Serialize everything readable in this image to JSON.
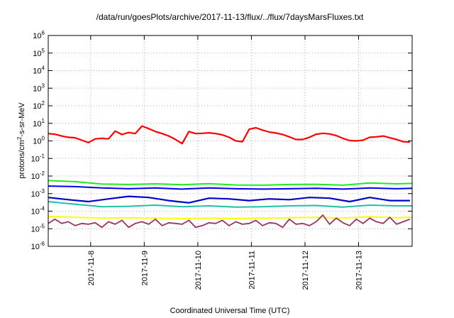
{
  "chart_data": {
    "type": "line",
    "title": "/data/run/goesPlots/archive/2017-11-13/flux/../flux/7daysMarsFluxes.txt",
    "xlabel": "Coordinated Universal Time (UTC)",
    "ylabel_parts": [
      "protons/cm",
      "2",
      "-s-sr-MeV"
    ],
    "y_scale": "log",
    "y_exponent_range": [
      -6,
      6
    ],
    "y_tick_labels": [
      {
        "base": "10",
        "exp": "-6"
      },
      {
        "base": "10",
        "exp": "-5"
      },
      {
        "base": "10",
        "exp": "-4"
      },
      {
        "base": "10",
        "exp": "-3"
      },
      {
        "base": "10",
        "exp": "-2"
      },
      {
        "base": "10",
        "exp": "-1"
      },
      {
        "base": "10",
        "exp": "0"
      },
      {
        "base": "10",
        "exp": "1"
      },
      {
        "base": "10",
        "exp": "2"
      },
      {
        "base": "10",
        "exp": "3"
      },
      {
        "base": "10",
        "exp": "4"
      },
      {
        "base": "10",
        "exp": "5"
      },
      {
        "base": "10",
        "exp": "6"
      }
    ],
    "x_range_days": [
      "2017-11-07T05:00",
      "2017-11-14T00:00"
    ],
    "x_tick_labels": [
      "2017-11-8",
      "2017-11-9",
      "2017-11-10",
      "2017-11-11",
      "2017-11-12",
      "2017-11-13"
    ],
    "grid": true,
    "series": [
      {
        "color": "#ff0000",
        "width": 2.2,
        "x": [
          "2017-11-07T05:00",
          "2017-11-07T08:00",
          "2017-11-07T11:00",
          "2017-11-07T14:00",
          "2017-11-07T17:00",
          "2017-11-07T20:00",
          "2017-11-07T23:00",
          "2017-11-08T02:00",
          "2017-11-08T05:00",
          "2017-11-08T08:00",
          "2017-11-08T11:00",
          "2017-11-08T14:00",
          "2017-11-08T17:00",
          "2017-11-08T20:00",
          "2017-11-08T23:00",
          "2017-11-09T02:00",
          "2017-11-09T05:00",
          "2017-11-09T08:00",
          "2017-11-09T11:00",
          "2017-11-09T14:00",
          "2017-11-09T17:00",
          "2017-11-09T20:00",
          "2017-11-09T23:00",
          "2017-11-10T02:00",
          "2017-11-10T05:00",
          "2017-11-10T08:00",
          "2017-11-10T11:00",
          "2017-11-10T14:00",
          "2017-11-10T17:00",
          "2017-11-10T20:00",
          "2017-11-10T23:00",
          "2017-11-11T02:00",
          "2017-11-11T05:00",
          "2017-11-11T08:00",
          "2017-11-11T11:00",
          "2017-11-11T14:00",
          "2017-11-11T17:00",
          "2017-11-11T20:00",
          "2017-11-11T23:00",
          "2017-11-12T02:00",
          "2017-11-12T05:00",
          "2017-11-12T08:00",
          "2017-11-12T11:00",
          "2017-11-12T14:00",
          "2017-11-12T17:00",
          "2017-11-12T20:00",
          "2017-11-12T23:00",
          "2017-11-13T02:00",
          "2017-11-13T05:00",
          "2017-11-13T08:00",
          "2017-11-13T11:00",
          "2017-11-13T14:00",
          "2017-11-13T17:00",
          "2017-11-13T20:00",
          "2017-11-13T23:00"
        ],
        "y": [
          2.6,
          2.4,
          1.9,
          1.6,
          1.5,
          1.1,
          0.8,
          1.3,
          1.4,
          1.3,
          3.6,
          2.3,
          3.0,
          2.6,
          7.0,
          5.0,
          3.4,
          2.6,
          1.9,
          1.2,
          0.7,
          3.4,
          2.6,
          2.7,
          2.9,
          2.6,
          2.2,
          1.6,
          1.0,
          0.9,
          4.6,
          5.6,
          4.1,
          3.2,
          2.8,
          2.3,
          1.7,
          1.2,
          1.2,
          1.6,
          2.4,
          2.7,
          2.5,
          2.0,
          1.4,
          1.05,
          1.0,
          1.1,
          1.6,
          1.7,
          1.9,
          1.5,
          1.2,
          0.9,
          0.85
        ]
      },
      {
        "color": "#22e822",
        "width": 2,
        "x": [
          "2017-11-07T05:00",
          "2017-11-07T17:00",
          "2017-11-08T05:00",
          "2017-11-08T17:00",
          "2017-11-09T05:00",
          "2017-11-09T17:00",
          "2017-11-10T05:00",
          "2017-11-10T17:00",
          "2017-11-11T05:00",
          "2017-11-11T17:00",
          "2017-11-12T05:00",
          "2017-11-12T17:00",
          "2017-11-13T05:00",
          "2017-11-13T17:00",
          "2017-11-14T00:00"
        ],
        "y": [
          0.0055,
          0.0048,
          0.0035,
          0.0033,
          0.0036,
          0.0032,
          0.0037,
          0.0031,
          0.003,
          0.0033,
          0.0034,
          0.003,
          0.004,
          0.0036,
          0.0038
        ]
      },
      {
        "color": "#0000ee",
        "width": 2,
        "x": [
          "2017-11-07T05:00",
          "2017-11-07T17:00",
          "2017-11-08T05:00",
          "2017-11-08T17:00",
          "2017-11-09T05:00",
          "2017-11-09T17:00",
          "2017-11-10T05:00",
          "2017-11-10T17:00",
          "2017-11-11T05:00",
          "2017-11-11T17:00",
          "2017-11-12T05:00",
          "2017-11-12T17:00",
          "2017-11-13T05:00",
          "2017-11-13T17:00",
          "2017-11-14T00:00"
        ],
        "y": [
          0.0027,
          0.0025,
          0.0021,
          0.0019,
          0.0021,
          0.0018,
          0.0021,
          0.0019,
          0.0018,
          0.0019,
          0.002,
          0.0018,
          0.0021,
          0.0019,
          0.002
        ]
      },
      {
        "color": "#0000cc",
        "width": 2.2,
        "x": [
          "2017-11-07T05:00",
          "2017-11-07T14:00",
          "2017-11-07T23:00",
          "2017-11-08T08:00",
          "2017-11-08T17:00",
          "2017-11-09T02:00",
          "2017-11-09T11:00",
          "2017-11-09T20:00",
          "2017-11-10T05:00",
          "2017-11-10T14:00",
          "2017-11-10T23:00",
          "2017-11-11T08:00",
          "2017-11-11T17:00",
          "2017-11-12T02:00",
          "2017-11-12T11:00",
          "2017-11-12T20:00",
          "2017-11-13T05:00",
          "2017-11-13T14:00",
          "2017-11-13T23:00"
        ],
        "y": [
          0.0006,
          0.00045,
          0.00035,
          0.0005,
          0.0007,
          0.0006,
          0.0004,
          0.0003,
          0.00055,
          0.0005,
          0.0004,
          0.0005,
          0.00045,
          0.0006,
          0.00055,
          0.00035,
          0.0006,
          0.0004,
          0.0004
        ]
      },
      {
        "color": "#20c0a8",
        "width": 2,
        "x": [
          "2017-11-07T05:00",
          "2017-11-07T17:00",
          "2017-11-08T05:00",
          "2017-11-08T17:00",
          "2017-11-09T05:00",
          "2017-11-09T17:00",
          "2017-11-10T05:00",
          "2017-11-10T17:00",
          "2017-11-11T05:00",
          "2017-11-11T17:00",
          "2017-11-12T05:00",
          "2017-11-12T17:00",
          "2017-11-13T05:00",
          "2017-11-13T17:00",
          "2017-11-14T00:00"
        ],
        "y": [
          0.00035,
          0.00025,
          0.00018,
          0.00019,
          0.00022,
          0.00018,
          0.0002,
          0.00017,
          0.00018,
          0.0002,
          0.00021,
          0.00017,
          0.00022,
          0.0002,
          0.0002
        ]
      },
      {
        "color": "#ffff00",
        "width": 2,
        "x": [
          "2017-11-07T05:00",
          "2017-11-07T17:00",
          "2017-11-08T05:00",
          "2017-11-08T17:00",
          "2017-11-09T05:00",
          "2017-11-09T17:00",
          "2017-11-10T05:00",
          "2017-11-10T17:00",
          "2017-11-11T05:00",
          "2017-11-11T17:00",
          "2017-11-12T05:00",
          "2017-11-12T17:00",
          "2017-11-13T05:00",
          "2017-11-13T17:00",
          "2017-11-14T00:00"
        ],
        "y": [
          5e-05,
          4.5e-05,
          4e-05,
          4.2e-05,
          4e-05,
          3.8e-05,
          4e-05,
          3.8e-05,
          4e-05,
          4.2e-05,
          4.5e-05,
          4e-05,
          4.8e-05,
          4.2e-05,
          4.5e-05
        ]
      },
      {
        "color": "#993366",
        "width": 1.8,
        "x": [
          "2017-11-07T05:00",
          "2017-11-07T08:00",
          "2017-11-07T11:00",
          "2017-11-07T14:00",
          "2017-11-07T17:00",
          "2017-11-07T20:00",
          "2017-11-07T23:00",
          "2017-11-08T02:00",
          "2017-11-08T05:00",
          "2017-11-08T08:00",
          "2017-11-08T11:00",
          "2017-11-08T14:00",
          "2017-11-08T17:00",
          "2017-11-08T20:00",
          "2017-11-08T23:00",
          "2017-11-09T02:00",
          "2017-11-09T05:00",
          "2017-11-09T08:00",
          "2017-11-09T11:00",
          "2017-11-09T14:00",
          "2017-11-09T17:00",
          "2017-11-09T20:00",
          "2017-11-09T23:00",
          "2017-11-10T02:00",
          "2017-11-10T05:00",
          "2017-11-10T08:00",
          "2017-11-10T11:00",
          "2017-11-10T14:00",
          "2017-11-10T17:00",
          "2017-11-10T20:00",
          "2017-11-10T23:00",
          "2017-11-11T02:00",
          "2017-11-11T05:00",
          "2017-11-11T08:00",
          "2017-11-11T11:00",
          "2017-11-11T14:00",
          "2017-11-11T17:00",
          "2017-11-11T20:00",
          "2017-11-11T23:00",
          "2017-11-12T02:00",
          "2017-11-12T05:00",
          "2017-11-12T08:00",
          "2017-11-12T11:00",
          "2017-11-12T14:00",
          "2017-11-12T17:00",
          "2017-11-12T20:00",
          "2017-11-12T23:00",
          "2017-11-13T02:00",
          "2017-11-13T05:00",
          "2017-11-13T08:00",
          "2017-11-13T11:00",
          "2017-11-13T14:00",
          "2017-11-13T17:00",
          "2017-11-13T20:00",
          "2017-11-13T23:00"
        ],
        "y": [
          2e-05,
          3.5e-05,
          2e-05,
          2.5e-05,
          1.5e-05,
          2e-05,
          1.8e-05,
          2.2e-05,
          1.2e-05,
          2.5e-05,
          1.8e-05,
          3e-05,
          1.2e-05,
          2e-05,
          2.5e-05,
          1.8e-05,
          3.5e-05,
          1.5e-05,
          2.2e-05,
          2e-05,
          1.8e-05,
          3e-05,
          1.2e-05,
          1.5e-05,
          2.2e-05,
          2e-05,
          3e-05,
          1.5e-05,
          2.5e-05,
          1.8e-05,
          2e-05,
          3e-05,
          1.5e-05,
          2.2e-05,
          2e-05,
          1.2e-05,
          3.5e-05,
          1.8e-05,
          2e-05,
          1.5e-05,
          2.5e-05,
          6e-05,
          1.8e-05,
          4e-05,
          2.2e-05,
          1.5e-05,
          3.5e-05,
          2e-05,
          4e-05,
          2.5e-05,
          2e-05,
          4.5e-05,
          1.8e-05,
          2.5e-05,
          3.5e-05
        ]
      }
    ]
  }
}
